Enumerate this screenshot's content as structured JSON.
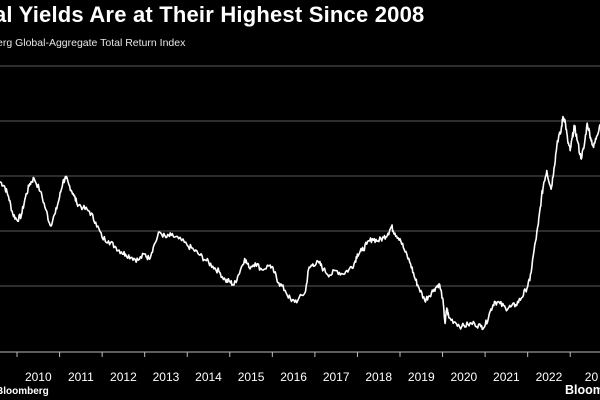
{
  "chart_data": {
    "type": "line",
    "title": "al Yields Are at Their Highest Since 2008",
    "subtitle": "erg Global-Aggregate Total Return Index",
    "xlabel": "",
    "ylabel": "",
    "x_ticks": [
      "2010",
      "2011",
      "2012",
      "2013",
      "2014",
      "2015",
      "2016",
      "2017",
      "2018",
      "2019",
      "2020",
      "2021",
      "2022",
      "20"
    ],
    "xlim": [
      2009.6,
      2023.7
    ],
    "ylim": [
      -1.2,
      4.2
    ],
    "y_gridlines": [
      0,
      1,
      2,
      3,
      4
    ],
    "y_tick_labels": [],
    "grid": true,
    "legend": "none",
    "series": [
      {
        "values": [
          [
            2009.6,
            1.9
          ],
          [
            2009.7,
            1.82
          ],
          [
            2009.8,
            1.63
          ],
          [
            2009.9,
            1.31
          ],
          [
            2010.0,
            1.2
          ],
          [
            2010.1,
            1.28
          ],
          [
            2010.2,
            1.62
          ],
          [
            2010.3,
            1.86
          ],
          [
            2010.4,
            1.96
          ],
          [
            2010.55,
            1.72
          ],
          [
            2010.68,
            1.38
          ],
          [
            2010.78,
            1.1
          ],
          [
            2010.9,
            1.32
          ],
          [
            2011.0,
            1.62
          ],
          [
            2011.08,
            1.9
          ],
          [
            2011.15,
            1.96
          ],
          [
            2011.22,
            1.84
          ],
          [
            2011.32,
            1.68
          ],
          [
            2011.4,
            1.52
          ],
          [
            2011.55,
            1.42
          ],
          [
            2011.7,
            1.36
          ],
          [
            2011.85,
            1.16
          ],
          [
            2012.0,
            0.88
          ],
          [
            2012.15,
            0.82
          ],
          [
            2012.3,
            0.72
          ],
          [
            2012.45,
            0.62
          ],
          [
            2012.55,
            0.58
          ],
          [
            2012.7,
            0.52
          ],
          [
            2012.85,
            0.47
          ],
          [
            2013.0,
            0.58
          ],
          [
            2013.1,
            0.5
          ],
          [
            2013.2,
            0.7
          ],
          [
            2013.35,
            0.98
          ],
          [
            2013.5,
            0.88
          ],
          [
            2013.62,
            0.92
          ],
          [
            2013.8,
            0.86
          ],
          [
            2014.0,
            0.74
          ],
          [
            2014.15,
            0.66
          ],
          [
            2014.3,
            0.56
          ],
          [
            2014.45,
            0.46
          ],
          [
            2014.6,
            0.36
          ],
          [
            2014.75,
            0.26
          ],
          [
            2014.9,
            0.1
          ],
          [
            2015.0,
            0.08
          ],
          [
            2015.1,
            0.02
          ],
          [
            2015.2,
            0.2
          ],
          [
            2015.35,
            0.5
          ],
          [
            2015.45,
            0.34
          ],
          [
            2015.6,
            0.42
          ],
          [
            2015.75,
            0.3
          ],
          [
            2015.95,
            0.38
          ],
          [
            2016.05,
            0.24
          ],
          [
            2016.15,
            0.06
          ],
          [
            2016.3,
            -0.08
          ],
          [
            2016.45,
            -0.28
          ],
          [
            2016.6,
            -0.26
          ],
          [
            2016.78,
            -0.1
          ],
          [
            2016.85,
            0.3
          ],
          [
            2016.95,
            0.4
          ],
          [
            2017.1,
            0.42
          ],
          [
            2017.2,
            0.3
          ],
          [
            2017.35,
            0.2
          ],
          [
            2017.5,
            0.28
          ],
          [
            2017.65,
            0.22
          ],
          [
            2017.8,
            0.3
          ],
          [
            2017.92,
            0.4
          ],
          [
            2018.0,
            0.58
          ],
          [
            2018.1,
            0.64
          ],
          [
            2018.22,
            0.76
          ],
          [
            2018.35,
            0.86
          ],
          [
            2018.48,
            0.82
          ],
          [
            2018.62,
            0.88
          ],
          [
            2018.72,
            0.96
          ],
          [
            2018.8,
            1.08
          ],
          [
            2018.88,
            0.96
          ],
          [
            2019.0,
            0.86
          ],
          [
            2019.12,
            0.62
          ],
          [
            2019.25,
            0.4
          ],
          [
            2019.35,
            0.14
          ],
          [
            2019.45,
            -0.04
          ],
          [
            2019.58,
            -0.26
          ],
          [
            2019.68,
            -0.18
          ],
          [
            2019.8,
            -0.06
          ],
          [
            2019.92,
            0.04
          ],
          [
            2020.0,
            -0.22
          ],
          [
            2020.06,
            -0.68
          ],
          [
            2020.1,
            -0.4
          ],
          [
            2020.15,
            -0.58
          ],
          [
            2020.3,
            -0.66
          ],
          [
            2020.45,
            -0.74
          ],
          [
            2020.6,
            -0.7
          ],
          [
            2020.75,
            -0.68
          ],
          [
            2020.9,
            -0.74
          ],
          [
            2021.0,
            -0.72
          ],
          [
            2021.12,
            -0.46
          ],
          [
            2021.22,
            -0.28
          ],
          [
            2021.35,
            -0.32
          ],
          [
            2021.48,
            -0.4
          ],
          [
            2021.6,
            -0.38
          ],
          [
            2021.72,
            -0.34
          ],
          [
            2021.85,
            -0.22
          ],
          [
            2021.95,
            -0.08
          ],
          [
            2022.05,
            0.1
          ],
          [
            2022.15,
            0.64
          ],
          [
            2022.25,
            1.12
          ],
          [
            2022.32,
            1.58
          ],
          [
            2022.38,
            1.88
          ],
          [
            2022.45,
            2.1
          ],
          [
            2022.55,
            1.76
          ],
          [
            2022.62,
            2.14
          ],
          [
            2022.7,
            2.64
          ],
          [
            2022.78,
            2.8
          ],
          [
            2022.83,
            3.08
          ],
          [
            2022.88,
            3.0
          ],
          [
            2022.94,
            2.64
          ],
          [
            2023.0,
            2.46
          ],
          [
            2023.05,
            2.7
          ],
          [
            2023.1,
            2.9
          ],
          [
            2023.17,
            2.64
          ],
          [
            2023.25,
            2.32
          ],
          [
            2023.32,
            2.5
          ],
          [
            2023.4,
            2.96
          ],
          [
            2023.48,
            2.7
          ],
          [
            2023.55,
            2.52
          ],
          [
            2023.62,
            2.72
          ],
          [
            2023.7,
            2.94
          ]
        ]
      }
    ],
    "colors": {
      "background": "#000000",
      "line": "#ffffff",
      "grid": "#5a5a5a",
      "axis": "#bcbcbc",
      "text": "#ffffff"
    }
  },
  "footer": {
    "source": "Bloomberg",
    "brand": "Bloom"
  }
}
